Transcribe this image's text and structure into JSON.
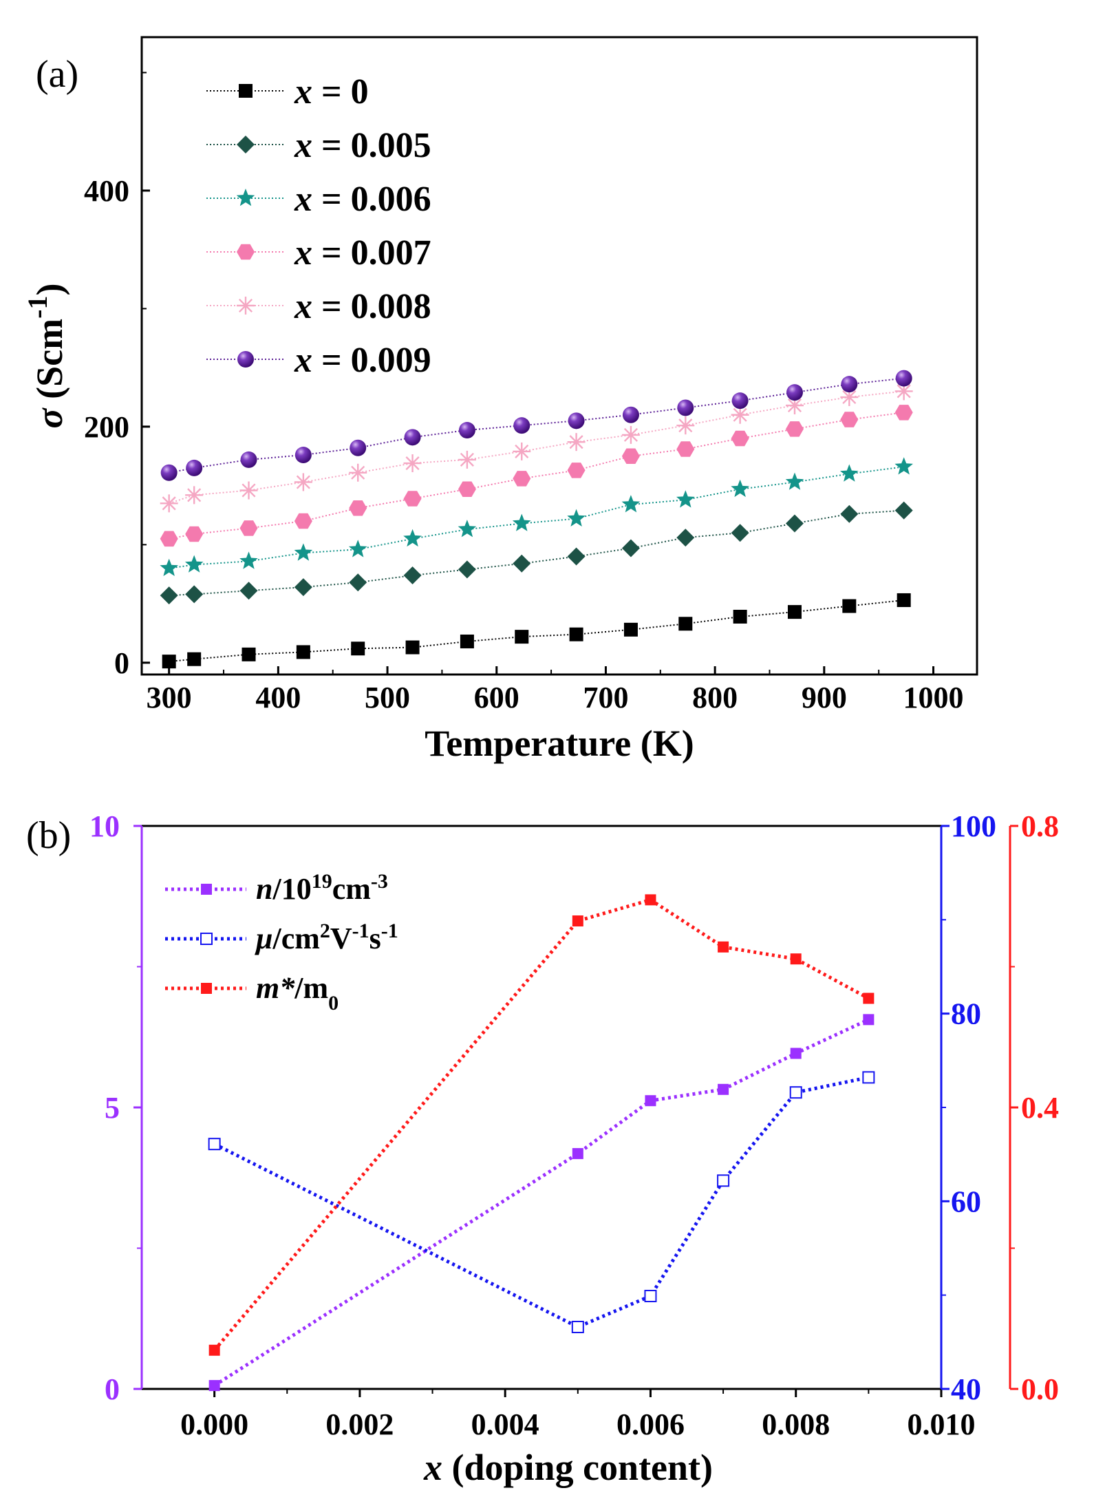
{
  "chart_data": [
    {
      "panel": "(a)",
      "type": "line",
      "xlabel": "Temperature (K)",
      "ylabel": "σ (Scm-1)",
      "xlim": [
        275,
        1040
      ],
      "ylim": [
        -10,
        530
      ],
      "xticks": [
        300,
        400,
        500,
        600,
        700,
        800,
        900,
        1000
      ],
      "yticks": [
        0,
        200,
        400
      ],
      "grid": false,
      "legend_position": "top-left",
      "x": [
        300,
        323,
        373,
        423,
        473,
        523,
        573,
        623,
        673,
        723,
        773,
        823,
        873,
        923,
        973
      ],
      "series": [
        {
          "name": "x = 0",
          "marker": "square",
          "color": "#000000",
          "values": [
            1,
            3,
            7,
            9,
            12,
            13,
            18,
            22,
            24,
            28,
            33,
            39,
            43,
            48,
            53
          ]
        },
        {
          "name": "x = 0.005",
          "marker": "diamond",
          "color": "#1d5246",
          "values": [
            57,
            58,
            61,
            64,
            68,
            74,
            79,
            84,
            90,
            97,
            106,
            110,
            118,
            126,
            129
          ]
        },
        {
          "name": "x = 0.006",
          "marker": "star",
          "color": "#14948a",
          "values": [
            80,
            83,
            86,
            93,
            96,
            105,
            113,
            118,
            122,
            134,
            138,
            147,
            153,
            160,
            166
          ]
        },
        {
          "name": "x = 0.007",
          "marker": "hexagon",
          "color": "#f47aae",
          "values": [
            105,
            109,
            114,
            120,
            131,
            139,
            147,
            156,
            163,
            175,
            181,
            190,
            198,
            206,
            212
          ]
        },
        {
          "name": "x = 0.008",
          "marker": "asterisk",
          "color": "#f5a7c3",
          "values": [
            135,
            142,
            146,
            153,
            161,
            169,
            172,
            179,
            187,
            193,
            201,
            210,
            218,
            225,
            230
          ]
        },
        {
          "name": "x = 0.009",
          "marker": "sphere",
          "color": "#5b1f96",
          "values": [
            161,
            165,
            172,
            176,
            182,
            191,
            197,
            201,
            205,
            210,
            216,
            222,
            229,
            236,
            241
          ]
        }
      ]
    },
    {
      "panel": "(b)",
      "type": "line",
      "xlabel": "x (doping content)",
      "xlim": [
        -0.001,
        0.01
      ],
      "xticks": [
        "0.000",
        "0.002",
        "0.004",
        "0.006",
        "0.008",
        "0.010"
      ],
      "grid": false,
      "legend_position": "top-left",
      "axes": {
        "left": {
          "ylim": [
            0,
            10
          ],
          "ticks": [
            "0",
            "5",
            "10"
          ],
          "color": "#9b30ff"
        },
        "right1": {
          "ylim": [
            40,
            100
          ],
          "ticks": [
            "40",
            "60",
            "80",
            "100"
          ],
          "color": "#1515f0"
        },
        "right2": {
          "ylim": [
            0.0,
            0.8
          ],
          "ticks": [
            "0.0",
            "0.4",
            "0.8"
          ],
          "color": "#ff1a1a"
        }
      },
      "x": [
        0.0,
        0.005,
        0.006,
        0.007,
        0.008,
        0.009
      ],
      "series": [
        {
          "name": "n/10^19cm^-3",
          "axis": "left",
          "marker": "filled-square",
          "color": "#9b30ff",
          "values": [
            0.06,
            4.18,
            5.12,
            5.32,
            5.96,
            6.56
          ]
        },
        {
          "name": "μ/cm^2V^-1s^-1",
          "axis": "right1",
          "marker": "open-square",
          "color": "#1515f0",
          "values": [
            66.1,
            46.6,
            49.9,
            62.2,
            71.6,
            73.2
          ]
        },
        {
          "name": "m*/m0",
          "axis": "right2",
          "marker": "filled-square",
          "color": "#ff1a1a",
          "values": [
            0.055,
            0.665,
            0.695,
            0.628,
            0.611,
            0.555
          ]
        }
      ]
    }
  ]
}
